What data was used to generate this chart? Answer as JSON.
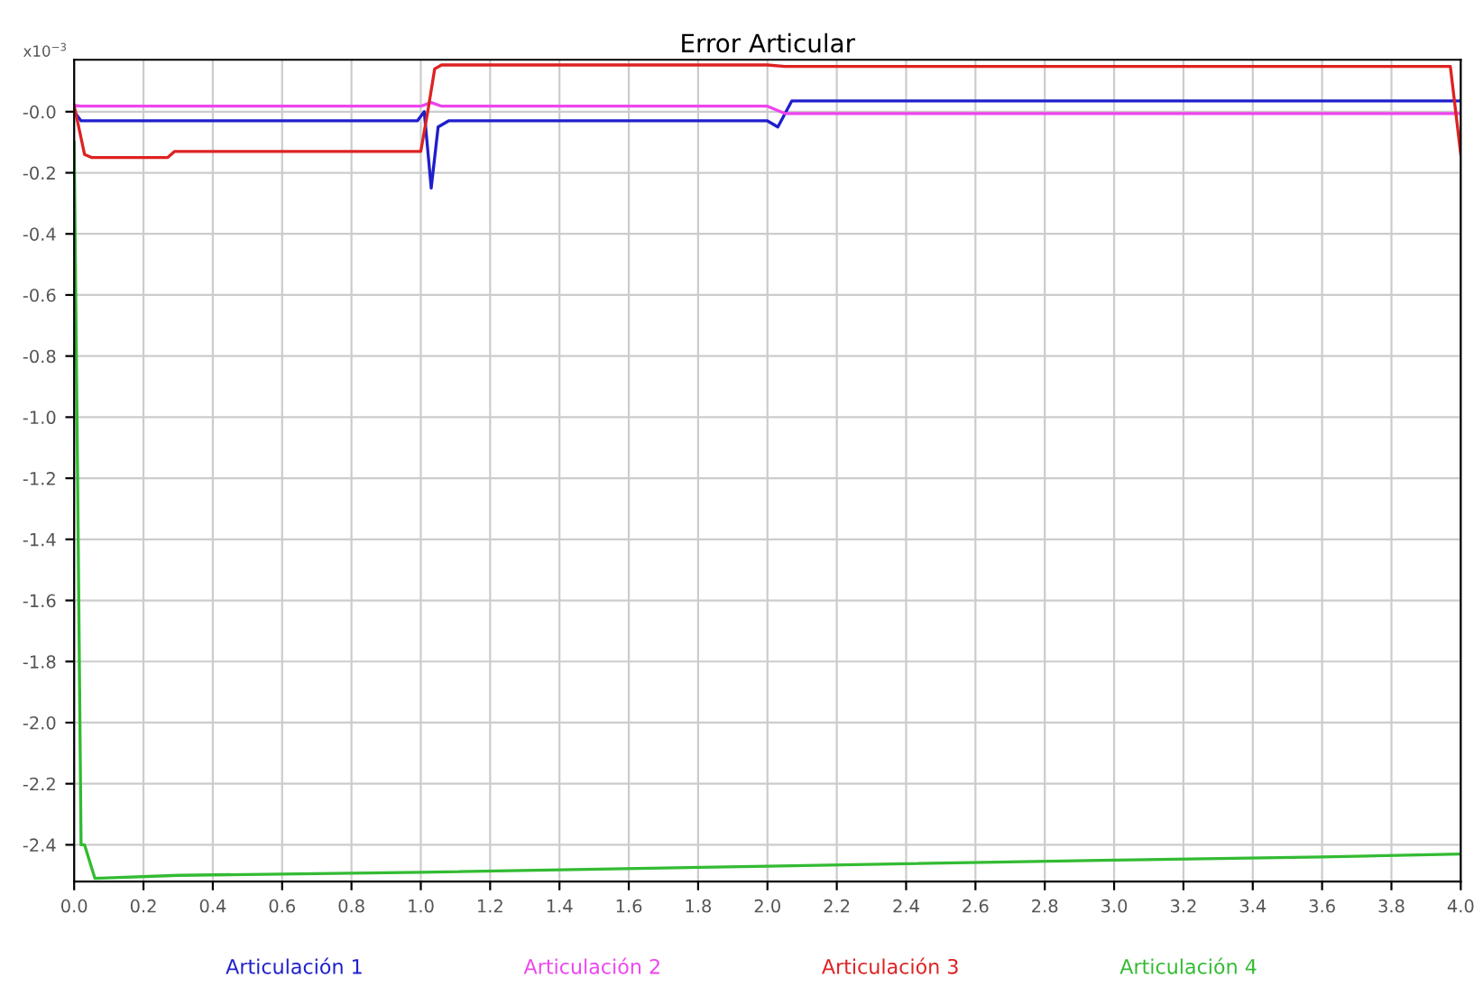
{
  "chart_data": {
    "type": "line",
    "title": "Error Articular",
    "annotations": [
      "x10$^{−3}$"
    ],
    "xlim": [
      0,
      4
    ],
    "xticks": [
      {
        "value": 0,
        "label": "0.0"
      },
      0.2,
      0.4,
      0.6,
      0.8,
      {
        "value": 1,
        "label": "1.0"
      },
      1.2,
      1.4,
      1.6,
      1.8,
      {
        "value": 2,
        "label": "2.0"
      },
      2.2,
      2.4,
      2.6,
      2.8,
      {
        "value": 3,
        "label": "3.0"
      },
      3.2,
      3.4,
      3.6,
      3.8,
      {
        "value": 4,
        "label": "4.0"
      }
    ],
    "ylim": [
      -2.52,
      0.17
    ],
    "yticks": [
      {
        "value": 0,
        "label": "-0.0"
      },
      -0.2,
      -0.4,
      -0.6,
      -0.8,
      {
        "value": -1,
        "label": "-1.0"
      },
      -1.2,
      -1.4,
      -1.6,
      -1.8,
      {
        "value": -2,
        "label": "-2.0"
      },
      -2.2,
      -2.4
    ],
    "grid": true,
    "legend": "bottom",
    "series": [
      {
        "name": "Articulación 1",
        "color": "#1f1fcc",
        "x": [
          0,
          0.02,
          0.73,
          0.75,
          0.99,
          1.01,
          1.03,
          1.05,
          1.08,
          2.0,
          2.03,
          2.07,
          2.1,
          4.0
        ],
        "values": [
          0.0,
          -0.03,
          -0.03,
          -0.03,
          -0.03,
          0.0,
          -0.25,
          -0.05,
          -0.03,
          -0.03,
          -0.05,
          0.035,
          0.035,
          0.035
        ]
      },
      {
        "name": "Articulación 2",
        "color": "#ee44ee",
        "x": [
          0,
          0.02,
          1.0,
          1.03,
          1.06,
          2.0,
          2.05,
          4.0
        ],
        "values": [
          0.02,
          0.018,
          0.018,
          0.03,
          0.018,
          0.018,
          -0.006,
          -0.006
        ]
      },
      {
        "name": "Articulación 3",
        "color": "#dd2222",
        "x": [
          0,
          0.03,
          0.05,
          0.27,
          0.29,
          1.0,
          1.02,
          1.04,
          1.06,
          2.0,
          2.05,
          3.97,
          4.0
        ],
        "values": [
          0.02,
          -0.14,
          -0.15,
          -0.15,
          -0.13,
          -0.13,
          0.0,
          0.14,
          0.153,
          0.153,
          0.148,
          0.148,
          -0.14
        ]
      },
      {
        "name": "Articulación 4",
        "color": "#33bb33",
        "x": [
          0,
          0.01,
          0.02,
          0.03,
          0.06,
          0.3,
          1.0,
          2.0,
          3.0,
          3.6,
          4.0
        ],
        "values": [
          -0.1,
          -1.2,
          -2.4,
          -2.4,
          -2.51,
          -2.5,
          -2.49,
          -2.47,
          -2.45,
          -2.44,
          -2.43
        ]
      }
    ]
  }
}
